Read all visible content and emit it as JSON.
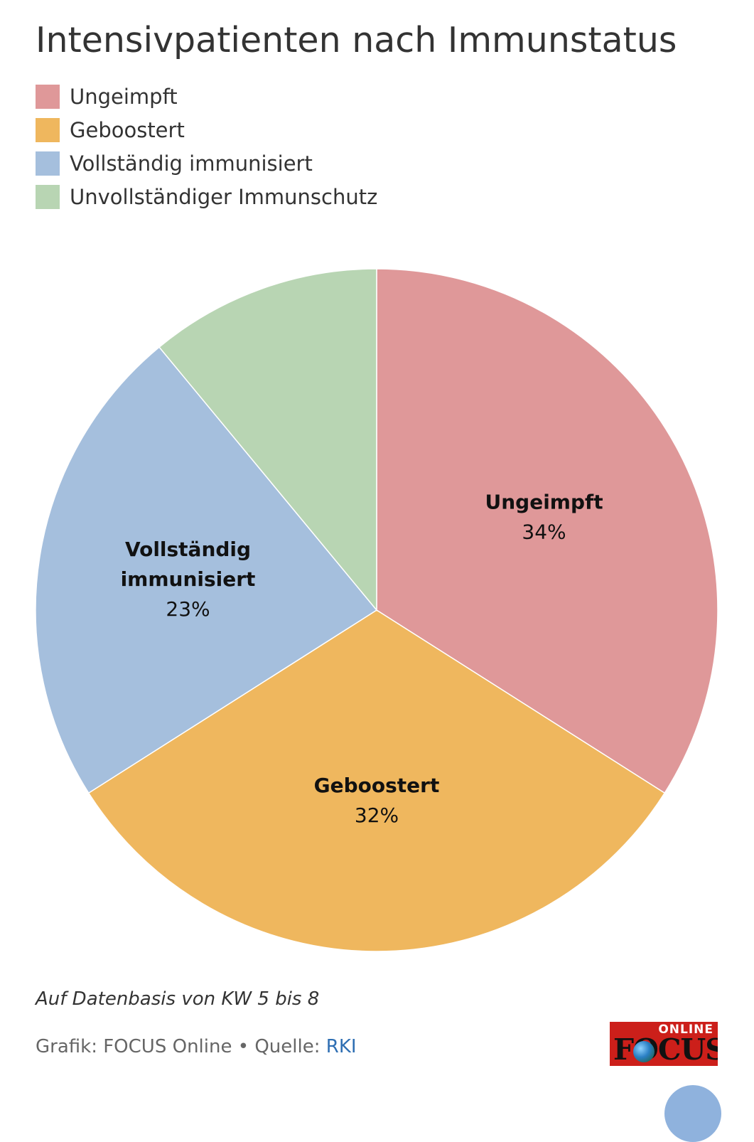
{
  "title": "Intensivpatienten nach Immunstatus",
  "note": "Auf Datenbasis von KW 5 bis 8",
  "credit": {
    "prefix": "Grafik: FOCUS Online • Quelle: ",
    "source_link": "RKI"
  },
  "logo": {
    "small_text": "ONLINE",
    "wordmark": "FOCUS"
  },
  "chart_data": {
    "type": "pie",
    "title": "Intensivpatienten nach Immunstatus",
    "unit": "%",
    "legend_position": "top-left",
    "slices": [
      {
        "name": "Ungeimpft",
        "value": 34,
        "color": "#df9899",
        "label": "Ungeimpft",
        "value_label": "34%"
      },
      {
        "name": "Geboostert",
        "value": 32,
        "color": "#efb75e",
        "label": "Geboostert",
        "value_label": "32%"
      },
      {
        "name": "Vollständig immunisiert",
        "value": 23,
        "color": "#a5bfdd",
        "label": "Vollständig immunisiert",
        "value_label": "23%"
      },
      {
        "name": "Unvollständiger Immunschutz",
        "value": 11,
        "color": "#b8d5b3",
        "label": "",
        "value_label": ""
      }
    ]
  }
}
